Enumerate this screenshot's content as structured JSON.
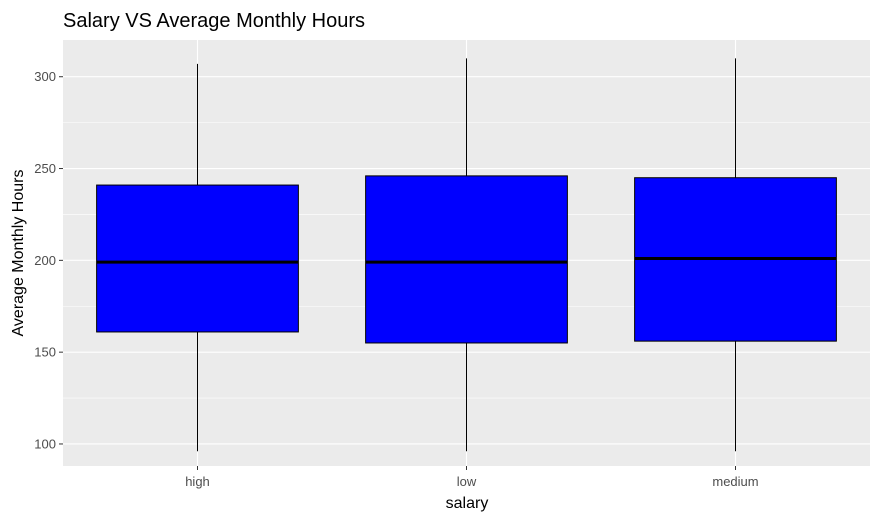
{
  "chart_data": {
    "type": "boxplot",
    "title": "Salary VS Average Monthly Hours",
    "xlabel": "salary",
    "ylabel": "Average Monthly Hours",
    "categories": [
      "high",
      "low",
      "medium"
    ],
    "boxes": [
      {
        "category": "high",
        "whisker_low": 96,
        "q1": 161,
        "median": 199,
        "q3": 241,
        "whisker_high": 307
      },
      {
        "category": "low",
        "whisker_low": 96,
        "q1": 155,
        "median": 199,
        "q3": 246,
        "whisker_high": 310
      },
      {
        "category": "medium",
        "whisker_low": 96,
        "q1": 156,
        "median": 201,
        "q3": 245,
        "whisker_high": 310
      }
    ],
    "ylim": [
      88,
      320
    ],
    "yticks": [
      100,
      150,
      200,
      250,
      300
    ],
    "grid": true,
    "legend": "none",
    "colors": {
      "box_fill": "#0000ff",
      "box_stroke": "#000000",
      "panel_background": "#ebebeb",
      "grid": "#ffffff"
    }
  }
}
